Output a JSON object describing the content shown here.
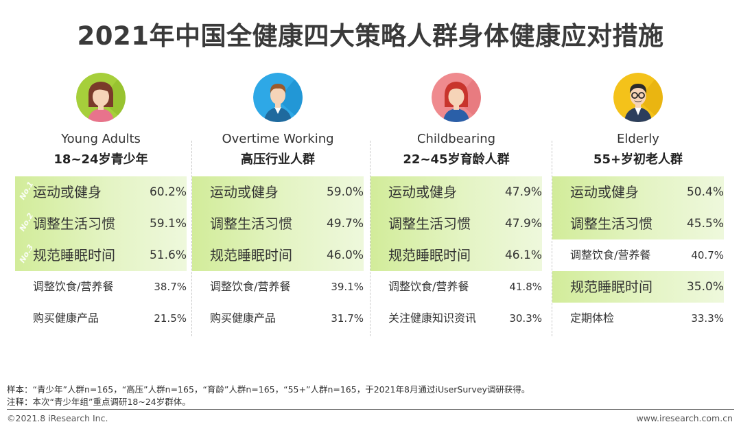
{
  "title": "2021年中国全健康四大策略人群身体健康应对措施",
  "chart_data": {
    "type": "table",
    "title": "2021年中国全健康四大策略人群身体健康应对措施",
    "groups": [
      {
        "name_en": "Young Adults",
        "name_cn": "18~24岁青少年",
        "items": [
          {
            "label": "运动或健身",
            "value": "60.2%",
            "highlight": true,
            "rank": "No.1"
          },
          {
            "label": "调整生活习惯",
            "value": "59.1%",
            "highlight": true,
            "rank": "No.2"
          },
          {
            "label": "规范睡眠时间",
            "value": "51.6%",
            "highlight": true,
            "rank": "No.3"
          },
          {
            "label": "调整饮食/营养餐",
            "value": "38.7%",
            "highlight": false,
            "rank": ""
          },
          {
            "label": "购买健康产品",
            "value": "21.5%",
            "highlight": false,
            "rank": ""
          }
        ]
      },
      {
        "name_en": "Overtime Working",
        "name_cn": "高压行业人群",
        "items": [
          {
            "label": "运动或健身",
            "value": "59.0%",
            "highlight": true,
            "rank": ""
          },
          {
            "label": "调整生活习惯",
            "value": "49.7%",
            "highlight": true,
            "rank": ""
          },
          {
            "label": "规范睡眠时间",
            "value": "46.0%",
            "highlight": true,
            "rank": ""
          },
          {
            "label": "调整饮食/营养餐",
            "value": "39.1%",
            "highlight": false,
            "rank": ""
          },
          {
            "label": "购买健康产品",
            "value": "31.7%",
            "highlight": false,
            "rank": ""
          }
        ]
      },
      {
        "name_en": "Childbearing",
        "name_cn": "22~45岁育龄人群",
        "items": [
          {
            "label": "运动或健身",
            "value": "47.9%",
            "highlight": true,
            "rank": ""
          },
          {
            "label": "调整生活习惯",
            "value": "47.9%",
            "highlight": true,
            "rank": ""
          },
          {
            "label": "规范睡眠时间",
            "value": "46.1%",
            "highlight": true,
            "rank": ""
          },
          {
            "label": "调整饮食/营养餐",
            "value": "41.8%",
            "highlight": false,
            "rank": ""
          },
          {
            "label": "关注健康知识资讯",
            "value": "30.3%",
            "highlight": false,
            "rank": ""
          }
        ]
      },
      {
        "name_en": "Elderly",
        "name_cn": "55+岁初老人群",
        "items": [
          {
            "label": "运动或健身",
            "value": "50.4%",
            "highlight": true,
            "rank": ""
          },
          {
            "label": "调整生活习惯",
            "value": "45.5%",
            "highlight": true,
            "rank": ""
          },
          {
            "label": "调整饮食/营养餐",
            "value": "40.7%",
            "highlight": false,
            "rank": ""
          },
          {
            "label": "规范睡眠时间",
            "value": "35.0%",
            "highlight": true,
            "rank": ""
          },
          {
            "label": "定期体检",
            "value": "33.3%",
            "highlight": false,
            "rank": ""
          }
        ]
      }
    ]
  },
  "avatars": [
    {
      "icon": "young-woman-icon",
      "bg": "#a6cf3b"
    },
    {
      "icon": "office-worker-icon",
      "bg": "#2ea8e6"
    },
    {
      "icon": "woman-red-hair-icon",
      "bg": "#ef8a8e"
    },
    {
      "icon": "elderly-man-glasses-icon",
      "bg": "#f4c21a"
    }
  ],
  "notes": {
    "sample": "样本：“青少年”人群n=165，“高压”人群n=165，“育龄”人群n=165，“55+”人群n=165，于2021年8月通过iUserSurvey调研获得。",
    "comment": "注释：本次“青少年组”重点调研18~24岁群体。"
  },
  "footer": {
    "copyright": "©2021.8 iResearch Inc.",
    "website": "www.iresearch.com.cn"
  }
}
